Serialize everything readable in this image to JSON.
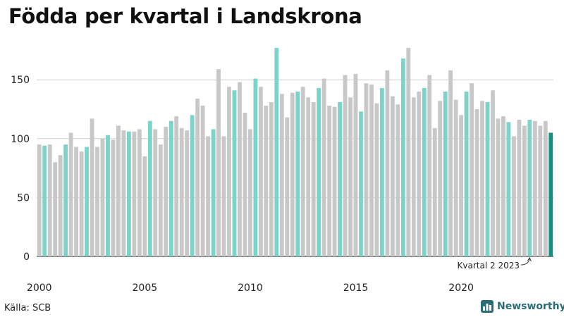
{
  "chart_data": {
    "type": "bar",
    "title": "Födda per kvartal i Landskrona",
    "xlabel": "",
    "ylabel": "",
    "ylim": [
      0,
      180
    ],
    "y_ticks": [
      "0",
      "50",
      "100",
      "150"
    ],
    "x_tick_labels": [
      "2000",
      "2005",
      "2010",
      "2015",
      "2020"
    ],
    "grid": "horizontal",
    "start": "2000 Q1",
    "categories": [
      "2000 Q1",
      "2000 Q2",
      "2000 Q3",
      "2000 Q4",
      "2001 Q1",
      "2001 Q2",
      "2001 Q3",
      "2001 Q4",
      "2002 Q1",
      "2002 Q2",
      "2002 Q3",
      "2002 Q4",
      "2003 Q1",
      "2003 Q2",
      "2003 Q3",
      "2003 Q4",
      "2004 Q1",
      "2004 Q2",
      "2004 Q3",
      "2004 Q4",
      "2005 Q1",
      "2005 Q2",
      "2005 Q3",
      "2005 Q4",
      "2006 Q1",
      "2006 Q2",
      "2006 Q3",
      "2006 Q4",
      "2007 Q1",
      "2007 Q2",
      "2007 Q3",
      "2007 Q4",
      "2008 Q1",
      "2008 Q2",
      "2008 Q3",
      "2008 Q4",
      "2009 Q1",
      "2009 Q2",
      "2009 Q3",
      "2009 Q4",
      "2010 Q1",
      "2010 Q2",
      "2010 Q3",
      "2010 Q4",
      "2011 Q1",
      "2011 Q2",
      "2011 Q3",
      "2011 Q4",
      "2012 Q1",
      "2012 Q2",
      "2012 Q3",
      "2012 Q4",
      "2013 Q1",
      "2013 Q2",
      "2013 Q3",
      "2013 Q4",
      "2014 Q1",
      "2014 Q2",
      "2014 Q3",
      "2014 Q4",
      "2015 Q1",
      "2015 Q2",
      "2015 Q3",
      "2015 Q4",
      "2016 Q1",
      "2016 Q2",
      "2016 Q3",
      "2016 Q4",
      "2017 Q1",
      "2017 Q2",
      "2017 Q3",
      "2017 Q4",
      "2018 Q1",
      "2018 Q2",
      "2018 Q3",
      "2018 Q4",
      "2019 Q1",
      "2019 Q2",
      "2019 Q3",
      "2019 Q4",
      "2020 Q1",
      "2020 Q2",
      "2020 Q3",
      "2020 Q4",
      "2021 Q1",
      "2021 Q2",
      "2021 Q3",
      "2021 Q4",
      "2022 Q1",
      "2022 Q2",
      "2022 Q3",
      "2022 Q4",
      "2023 Q1",
      "2023 Q2",
      "2023 Q3",
      "2023 Q4",
      "2024 Q1",
      "2024 Q2"
    ],
    "values": [
      95,
      94,
      95,
      80,
      86,
      95,
      105,
      93,
      89,
      93,
      117,
      93,
      100,
      103,
      99,
      111,
      107,
      106,
      106,
      108,
      85,
      115,
      108,
      95,
      110,
      115,
      119,
      109,
      107,
      120,
      134,
      128,
      102,
      108,
      159,
      102,
      144,
      141,
      148,
      122,
      108,
      151,
      144,
      128,
      131,
      177,
      138,
      118,
      139,
      140,
      144,
      135,
      131,
      143,
      151,
      128,
      127,
      131,
      154,
      135,
      155,
      123,
      147,
      146,
      130,
      143,
      158,
      136,
      129,
      168,
      177,
      135,
      140,
      143,
      154,
      109,
      132,
      140,
      158,
      133,
      120,
      140,
      147,
      125,
      132,
      131,
      141,
      117,
      119,
      114,
      102,
      116,
      111,
      116,
      115,
      111,
      115,
      105
    ],
    "highlight_quarter": 2,
    "colors": {
      "default": "#c8c8c8",
      "highlight": "#7dd3c8",
      "latest": "#178f82"
    },
    "annotation": "Kvartal 2 2023"
  },
  "source": "Källa: SCB",
  "brand": {
    "name": "Newsworthy"
  }
}
